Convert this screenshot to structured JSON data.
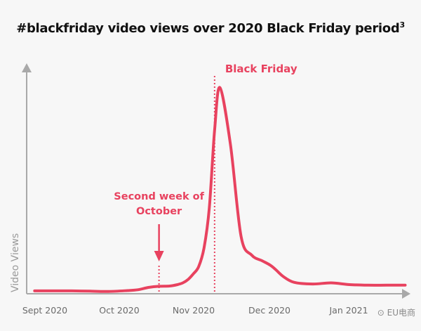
{
  "chart_data": {
    "type": "line",
    "title": "#blackfriday video views over 2020 Black Friday period",
    "title_superscript": "3",
    "xlabel": "",
    "ylabel": "Video Views",
    "x_ticks": [
      "Sept 2020",
      "Oct 2020",
      "Nov 2020",
      "Dec 2020",
      "Jan 2021"
    ],
    "y_ticks": [],
    "grid": false,
    "legend": "none",
    "line_color": "#e8425f",
    "series": [
      {
        "x": [
          "2020-09-01",
          "2020-09-08",
          "2020-09-15",
          "2020-09-22",
          "2020-09-29",
          "2020-10-06",
          "2020-10-10",
          "2020-10-14",
          "2020-10-18",
          "2020-10-22",
          "2020-10-25",
          "2020-10-27",
          "2020-10-29",
          "2020-10-31",
          "2020-11-02",
          "2020-11-04",
          "2020-11-06",
          "2020-11-08",
          "2020-11-10",
          "2020-11-14",
          "2020-11-18",
          "2020-11-22",
          "2020-11-26",
          "2020-11-29",
          "2020-12-01",
          "2020-12-04",
          "2020-12-08",
          "2020-12-15",
          "2020-12-22",
          "2020-12-29",
          "2021-01-05",
          "2021-01-12",
          "2021-01-19"
        ],
        "values": [
          1.0,
          1.0,
          1.0,
          0.9,
          0.8,
          1.1,
          1.4,
          2.2,
          2.6,
          2.7,
          3.2,
          3.8,
          5.0,
          7.0,
          9.5,
          16.0,
          30.0,
          57.0,
          72.0,
          52.0,
          20.0,
          13.5,
          11.5,
          10.0,
          8.5,
          6.0,
          4.0,
          3.4,
          3.8,
          3.2,
          3.0,
          3.0,
          3.0
        ]
      }
    ],
    "xlim": [
      "2020-08-29",
      "2021-01-21"
    ],
    "ylim": [
      0,
      80
    ],
    "annotations": [
      {
        "text": "Black Friday",
        "date": "2020-11-08",
        "color": "#e8425f"
      },
      {
        "text": "Second week of October",
        "lines": [
          "Second week of",
          "October"
        ],
        "date": "2020-10-18",
        "arrow": true,
        "color": "#e8425f"
      }
    ]
  },
  "watermark": "⊙ EU电商"
}
